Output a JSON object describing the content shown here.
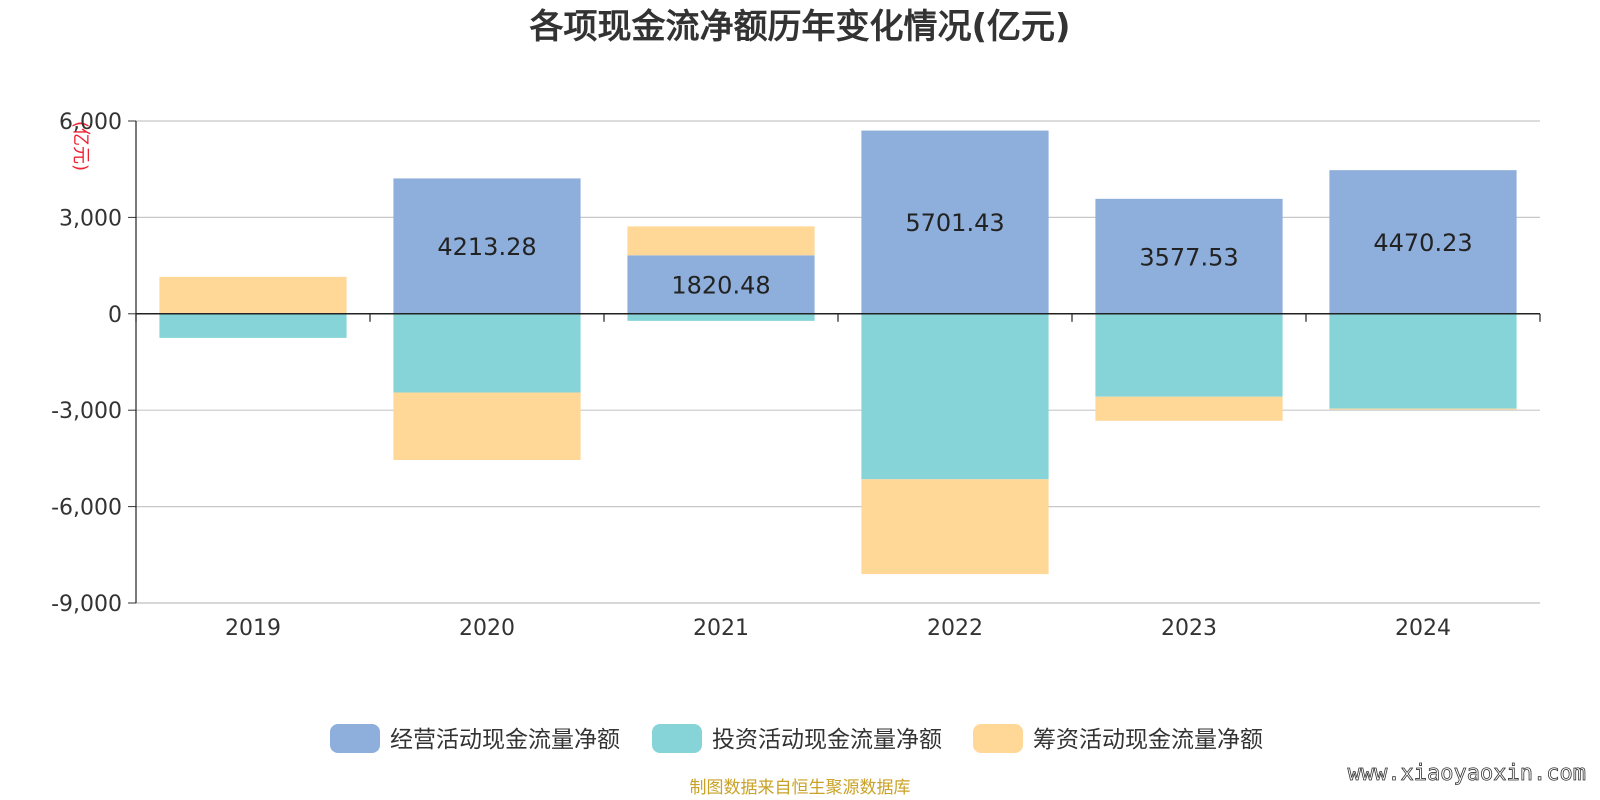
{
  "chart_data": {
    "type": "bar",
    "stacked": true,
    "title": "各项现金流净额历年变化情况(亿元)",
    "ylabel": "(亿元)",
    "categories": [
      "2019",
      "2020",
      "2021",
      "2022",
      "2023",
      "2024"
    ],
    "ylim": [
      -9000,
      6000
    ],
    "yticks": [
      6000,
      3000,
      0,
      -3000,
      -6000,
      -9000
    ],
    "ytick_labels": [
      "6,000",
      "3,000",
      "0",
      "-3,000",
      "-6,000",
      "-9,000"
    ],
    "grid": true,
    "legend_position": "bottom",
    "series": [
      {
        "name": "经营活动现金流量净额",
        "color": "#8eaedb",
        "values": [
          0,
          4213.28,
          1820.48,
          5701.43,
          3577.53,
          4470.23
        ],
        "labels": [
          "",
          "4213.28",
          "1820.48",
          "5701.43",
          "3577.53",
          "4470.23"
        ]
      },
      {
        "name": "投资活动现金流量净额",
        "color": "#86d4d8",
        "values": [
          -750,
          -2450,
          -220,
          -5150,
          -2580,
          -2950
        ]
      },
      {
        "name": "筹资活动现金流量净额",
        "color": "#ffd898",
        "values": [
          1150,
          -2100,
          900,
          -2950,
          -750,
          -30
        ]
      }
    ]
  },
  "footer": {
    "source": "制图数据来自恒生聚源数据库",
    "watermark": "www.xiaoyaoxin.com"
  }
}
